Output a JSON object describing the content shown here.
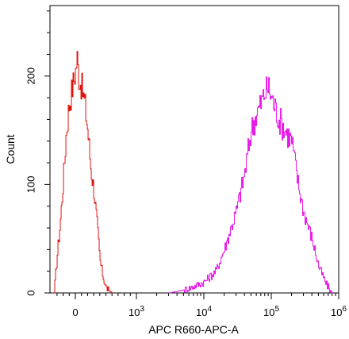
{
  "chart_data": {
    "type": "histogram",
    "title": "",
    "xlabel": "APC R660-APC-A",
    "ylabel": "Count",
    "x_scale": "biexponential",
    "ylim": [
      0,
      265
    ],
    "grid": false,
    "legend": "none",
    "x_ticks": [
      {
        "value": 0,
        "base": "0",
        "exp": ""
      },
      {
        "value": 1000,
        "base": "10",
        "exp": "3"
      },
      {
        "value": 10000,
        "base": "10",
        "exp": "4"
      },
      {
        "value": 100000,
        "base": "10",
        "exp": "5"
      },
      {
        "value": 1000000,
        "base": "10",
        "exp": "6"
      }
    ],
    "y_ticks": [
      0,
      100,
      200
    ],
    "series": [
      {
        "color": "#e0140f",
        "x": [
          -350,
          -300,
          -250,
          -200,
          -150,
          -100,
          -50,
          0,
          25,
          50,
          100,
          150,
          200,
          250,
          300,
          350,
          400,
          450,
          500,
          550,
          600
        ],
        "y": [
          0,
          35,
          65,
          105,
          150,
          175,
          190,
          205,
          218,
          200,
          190,
          175,
          150,
          115,
          95,
          65,
          30,
          15,
          5,
          2,
          0
        ]
      },
      {
        "color": "#e81ce8",
        "x": [
          3000,
          4500,
          6500,
          10000,
          15000,
          20000,
          30000,
          40000,
          50000,
          60000,
          70000,
          80000,
          90000,
          100000,
          130000,
          160000,
          200000,
          250000,
          300000,
          400000,
          500000,
          650000,
          800000
        ],
        "y": [
          0,
          2,
          5,
          10,
          20,
          40,
          75,
          110,
          150,
          165,
          175,
          185,
          190,
          180,
          160,
          150,
          140,
          100,
          75,
          50,
          25,
          8,
          0
        ]
      }
    ]
  }
}
